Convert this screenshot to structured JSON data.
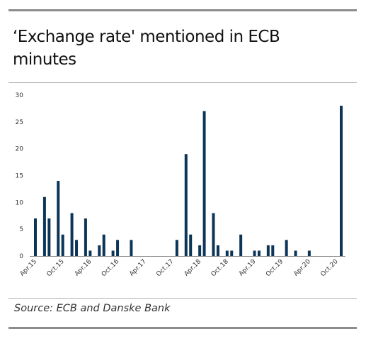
{
  "title": "‘Exchange rate' mentioned in ECB minutes",
  "source": "Source: ECB and Danske Bank",
  "chart_data": {
    "type": "bar",
    "x_tick_labels": [
      "Apr.15",
      "Oct.15",
      "Apr.16",
      "Oct.16",
      "Apr.17",
      "Oct.17",
      "Apr.18",
      "Oct.18",
      "Apr.19",
      "Oct.19",
      "Apr.20",
      "Oct.20"
    ],
    "y_ticks": [
      0,
      5,
      10,
      15,
      20,
      25,
      30
    ],
    "ylim": [
      0,
      30
    ],
    "n_months": 68,
    "grid": false,
    "bar_color": "#0d3557",
    "bars": [
      {
        "month": 0,
        "value": 7
      },
      {
        "month": 2,
        "value": 11
      },
      {
        "month": 3,
        "value": 7
      },
      {
        "month": 5,
        "value": 14
      },
      {
        "month": 6,
        "value": 4
      },
      {
        "month": 8,
        "value": 8
      },
      {
        "month": 9,
        "value": 3
      },
      {
        "month": 11,
        "value": 7
      },
      {
        "month": 12,
        "value": 1
      },
      {
        "month": 14,
        "value": 2
      },
      {
        "month": 15,
        "value": 4
      },
      {
        "month": 17,
        "value": 1
      },
      {
        "month": 18,
        "value": 3
      },
      {
        "month": 21,
        "value": 3
      },
      {
        "month": 31,
        "value": 3
      },
      {
        "month": 33,
        "value": 19
      },
      {
        "month": 34,
        "value": 4
      },
      {
        "month": 36,
        "value": 2
      },
      {
        "month": 37,
        "value": 27
      },
      {
        "month": 39,
        "value": 8
      },
      {
        "month": 40,
        "value": 2
      },
      {
        "month": 42,
        "value": 1
      },
      {
        "month": 43,
        "value": 1
      },
      {
        "month": 45,
        "value": 4
      },
      {
        "month": 48,
        "value": 1
      },
      {
        "month": 49,
        "value": 1
      },
      {
        "month": 51,
        "value": 2
      },
      {
        "month": 52,
        "value": 2
      },
      {
        "month": 55,
        "value": 3
      },
      {
        "month": 57,
        "value": 1
      },
      {
        "month": 60,
        "value": 1
      },
      {
        "month": 67,
        "value": 28
      }
    ]
  }
}
